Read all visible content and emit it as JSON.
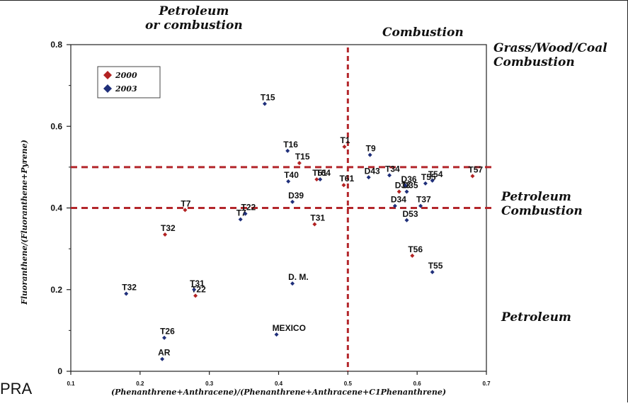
{
  "zone_labels": {
    "top_left": "Petroleum\nor combustion",
    "top_right": "Combustion",
    "right_1": "Grass/Wood/Coal\nCombustion",
    "right_2": "Petroleum\nCombustion",
    "right_3": "Petroleum"
  },
  "footer_text": "PRA",
  "chart_data": {
    "type": "scatter",
    "xlabel": "(Phenanthrene+Anthracene)/(Phenanthrene+Anthracene+C1Phenanthrene)",
    "ylabel": "Fluoranthene/(Fluoranthene+Pyrene)",
    "xlim": [
      0.1,
      0.7
    ],
    "ylim": [
      0,
      0.8
    ],
    "x_ticks": [
      "0.1",
      "0.2",
      "0.3",
      "0.4",
      "0.5",
      "0.6",
      "0.7"
    ],
    "y_ticks": [
      "0",
      "0.2",
      "0.4",
      "0.6",
      "0.8"
    ],
    "y_tick_values": [
      0,
      0.2,
      0.4,
      0.6,
      0.8
    ],
    "x_tick_values": [
      0.1,
      0.2,
      0.3,
      0.4,
      0.5,
      0.6,
      0.7
    ],
    "threshold_lines": {
      "vertical_x": 0.5,
      "horizontal_y": [
        0.4,
        0.5
      ]
    },
    "legend": {
      "position": "top-left",
      "entries": [
        {
          "name": "2000",
          "color": "#b22222"
        },
        {
          "name": "2003",
          "color": "#1f2f7a"
        }
      ]
    },
    "series": [
      {
        "name": "2000",
        "color": "#b22222",
        "points": [
          {
            "label": "T1",
            "x": 0.495,
            "y": 0.55
          },
          {
            "label": "T15",
            "x": 0.43,
            "y": 0.51
          },
          {
            "label": "T7",
            "x": 0.265,
            "y": 0.395
          },
          {
            "label": "T32",
            "x": 0.236,
            "y": 0.335
          },
          {
            "label": "T31",
            "x": 0.452,
            "y": 0.36
          },
          {
            "label": "T61",
            "x": 0.494,
            "y": 0.456
          },
          {
            "label": "T22",
            "x": 0.28,
            "y": 0.185
          },
          {
            "label": "T57",
            "x": 0.68,
            "y": 0.478
          },
          {
            "label": "T56",
            "x": 0.593,
            "y": 0.283
          },
          {
            "label": "T51",
            "x": 0.455,
            "y": 0.47
          },
          {
            "label": "D33",
            "x": 0.574,
            "y": 0.44
          }
        ]
      },
      {
        "name": "2003",
        "color": "#1f2f7a",
        "points": [
          {
            "label": "T15",
            "x": 0.38,
            "y": 0.655
          },
          {
            "label": "T16",
            "x": 0.413,
            "y": 0.54
          },
          {
            "label": "T9",
            "x": 0.532,
            "y": 0.53
          },
          {
            "label": "T40",
            "x": 0.414,
            "y": 0.465
          },
          {
            "label": "T64",
            "x": 0.46,
            "y": 0.47
          },
          {
            "label": "D39",
            "x": 0.42,
            "y": 0.415
          },
          {
            "label": "T7",
            "x": 0.345,
            "y": 0.372
          },
          {
            "label": "T22",
            "x": 0.352,
            "y": 0.386
          },
          {
            "label": "D43",
            "x": 0.53,
            "y": 0.475
          },
          {
            "label": "T34",
            "x": 0.56,
            "y": 0.48
          },
          {
            "label": "D36",
            "x": 0.583,
            "y": 0.455
          },
          {
            "label": "D35",
            "x": 0.585,
            "y": 0.44
          },
          {
            "label": "T55",
            "x": 0.612,
            "y": 0.46
          },
          {
            "label": "T54",
            "x": 0.622,
            "y": 0.467
          },
          {
            "label": "D34",
            "x": 0.568,
            "y": 0.405
          },
          {
            "label": "T37",
            "x": 0.605,
            "y": 0.405
          },
          {
            "label": "D53",
            "x": 0.585,
            "y": 0.37
          },
          {
            "label": "T55",
            "x": 0.622,
            "y": 0.243
          },
          {
            "label": "T32",
            "x": 0.18,
            "y": 0.19
          },
          {
            "label": "T31",
            "x": 0.278,
            "y": 0.2
          },
          {
            "label": "T26",
            "x": 0.235,
            "y": 0.082
          },
          {
            "label": "AR",
            "x": 0.232,
            "y": 0.03
          },
          {
            "label": "D. M.",
            "x": 0.42,
            "y": 0.215
          },
          {
            "label": "MEXICO",
            "x": 0.397,
            "y": 0.09
          }
        ]
      }
    ]
  }
}
